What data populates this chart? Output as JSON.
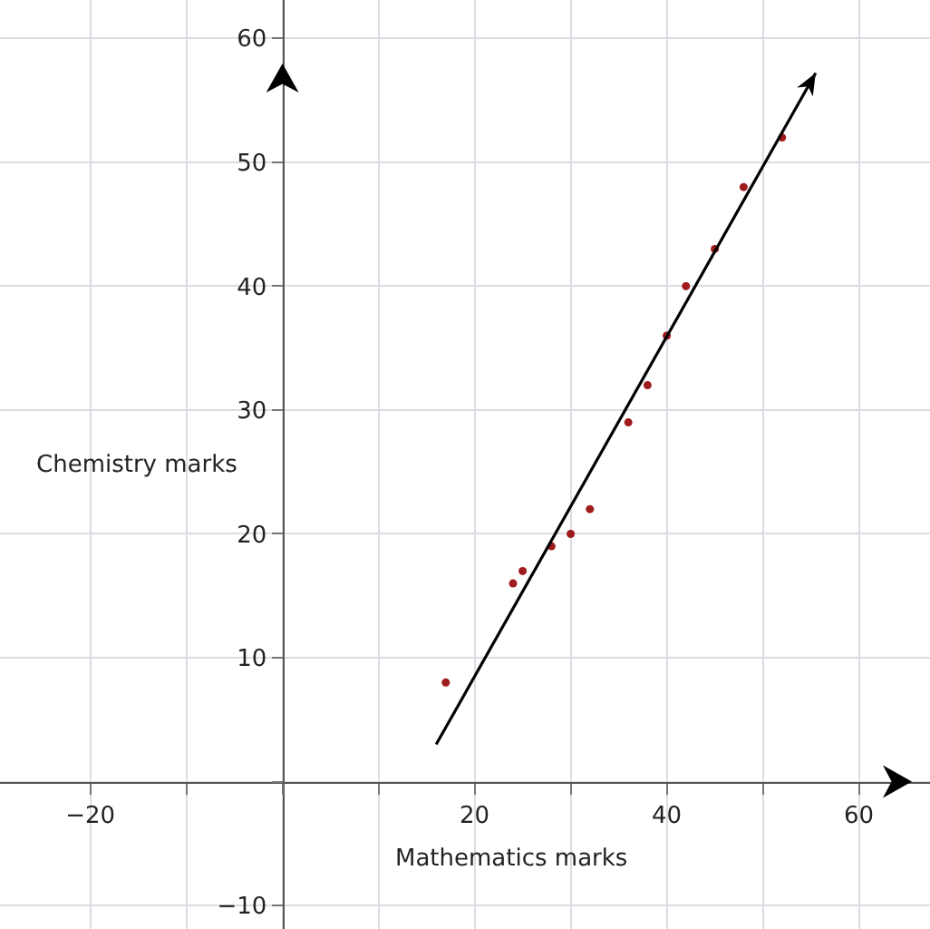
{
  "chart_data": {
    "type": "scatter",
    "xlabel": "Mathematics marks",
    "ylabel": "Chemistry marks",
    "series": [
      {
        "color": "#a01c1c",
        "marker": "circle",
        "x": [
          17,
          24,
          25,
          28,
          30,
          32,
          36,
          38,
          40,
          42,
          45,
          48,
          52
        ],
        "values": [
          8,
          16,
          17,
          19,
          20,
          22,
          29,
          32,
          36,
          40,
          43,
          48,
          52
        ]
      },
      {
        "type": "line",
        "color": "#000000",
        "line_style": "solid",
        "x": [
          16,
          55.5
        ],
        "values": [
          3,
          57.2
        ]
      }
    ],
    "xlim": [
      -29.4,
      67.4
    ],
    "ylim": [
      -11.9,
      63.1
    ],
    "xticks": [
      {
        "value": -20,
        "label": "−20"
      },
      {
        "value": -10,
        "label": null
      },
      {
        "value": 0,
        "label": null
      },
      {
        "value": 10,
        "label": null
      },
      20,
      {
        "value": 30,
        "label": null
      },
      40,
      {
        "value": 50,
        "label": null
      },
      60
    ],
    "yticks": [
      {
        "value": -10,
        "label": "−10"
      },
      {
        "value": 0,
        "label": null
      },
      10,
      20,
      30,
      40,
      50,
      60
    ],
    "grid": true
  }
}
